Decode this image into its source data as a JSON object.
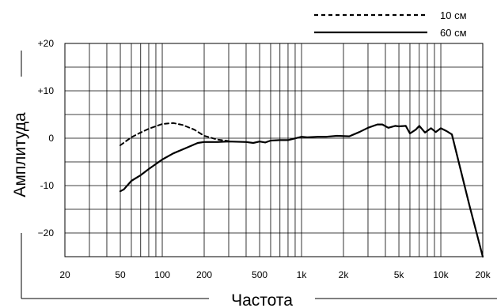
{
  "chart_data": {
    "type": "line",
    "xlabel": "Частота",
    "ylabel": "Амплитуда",
    "x_scale": "log",
    "xlim": [
      20,
      20000
    ],
    "ylim": [
      -25,
      20
    ],
    "x_ticks": [
      20,
      50,
      100,
      200,
      500,
      1000,
      2000,
      5000,
      10000,
      20000
    ],
    "x_tick_labels": [
      "20",
      "50",
      "100",
      "200",
      "500",
      "1k",
      "2k",
      "5k",
      "10k",
      "20k"
    ],
    "y_ticks": [
      20,
      10,
      0,
      -10,
      -20
    ],
    "y_tick_labels": [
      "+20",
      "+10",
      "0",
      "-10",
      "−20"
    ],
    "grid": true,
    "legend_position": "top-right",
    "series": [
      {
        "name": "10 см",
        "style": "dashed",
        "x": [
          50,
          60,
          70,
          80,
          100,
          120,
          140,
          170,
          200,
          250,
          300
        ],
        "y": [
          -1.5,
          0.2,
          1.2,
          2,
          3,
          3.2,
          2.8,
          1.8,
          0.5,
          -0.3,
          -0.6
        ]
      },
      {
        "name": "60 см",
        "style": "solid",
        "x": [
          50,
          53,
          60,
          70,
          80,
          100,
          120,
          150,
          180,
          200,
          250,
          300,
          400,
          450,
          500,
          550,
          600,
          700,
          800,
          1000,
          1100,
          1300,
          1500,
          1800,
          2200,
          2600,
          3000,
          3500,
          3800,
          4200,
          4700,
          5000,
          5600,
          6000,
          6600,
          7000,
          7700,
          8500,
          9200,
          10000,
          11000,
          12000,
          16000,
          20000
        ],
        "y": [
          -11.2,
          -10.8,
          -9,
          -7.8,
          -6.5,
          -4.5,
          -3.2,
          -2,
          -1,
          -0.8,
          -0.8,
          -0.7,
          -0.8,
          -1,
          -0.7,
          -0.9,
          -0.5,
          -0.4,
          -0.4,
          0.3,
          0.2,
          0.3,
          0.3,
          0.5,
          0.4,
          1.3,
          2.2,
          2.9,
          2.9,
          2.2,
          2.6,
          2.5,
          2.6,
          1.0,
          1.8,
          2.6,
          1.2,
          2.1,
          1.3,
          2.1,
          1.5,
          0.8,
          -14,
          -25
        ]
      }
    ]
  }
}
